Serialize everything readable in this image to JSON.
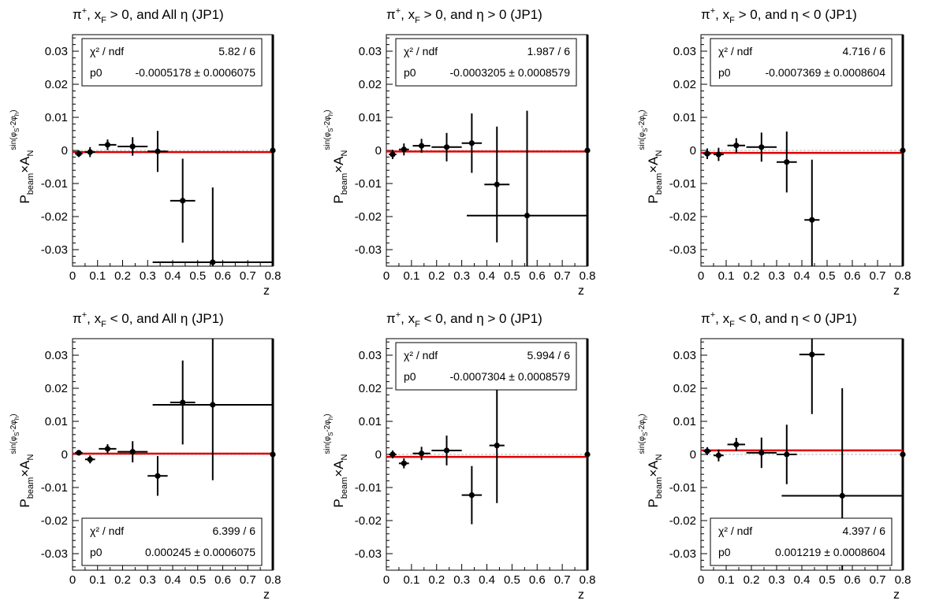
{
  "chart_data": [
    {
      "type": "scatter",
      "title": "π⁺, x_F > 0, and All η (JP1)",
      "title_parts": {
        "particle": "π",
        "charge": "+",
        "x": "x",
        "x_sub": "F",
        "rest": " > 0, and All η (JP1)"
      },
      "ylabel": {
        "p": "P",
        "p_sub": "beam",
        "cross": "×A",
        "a_sub": "N",
        "sup": "sin(φ",
        "sup_s": "S",
        "sup_mid": "-2φ",
        "sup_h": "h",
        "sup_end": ")"
      },
      "xlabel": "z",
      "xlim": [
        0,
        0.8
      ],
      "ylim": [
        -0.035,
        0.035
      ],
      "xticks": [
        "0",
        "0.1",
        "0.2",
        "0.3",
        "0.4",
        "0.5",
        "0.6",
        "0.7",
        "0.8"
      ],
      "yticks": [
        "-0.03",
        "-0.02",
        "-0.01",
        "0",
        "0.01",
        "0.02",
        "0.03"
      ],
      "points": [
        {
          "x": 0.025,
          "y": -0.001,
          "xerr": 0.015,
          "yerr": 0.001
        },
        {
          "x": 0.07,
          "y": -0.0005,
          "xerr": 0.02,
          "yerr": 0.0015
        },
        {
          "x": 0.14,
          "y": 0.0017,
          "xerr": 0.035,
          "yerr": 0.0016
        },
        {
          "x": 0.24,
          "y": 0.0012,
          "xerr": 0.06,
          "yerr": 0.0028
        },
        {
          "x": 0.34,
          "y": -0.0003,
          "xerr": 0.04,
          "yerr": 0.0062
        },
        {
          "x": 0.44,
          "y": -0.0152,
          "xerr": 0.05,
          "yerr": 0.0127
        },
        {
          "x": 0.56,
          "y": -0.0338,
          "xerr": 0.24,
          "yerr": 0.0226
        }
      ],
      "fit_p0": -0.0005178,
      "stats": {
        "chi_label": "χ² / ndf",
        "chi_value": "5.82 / 6",
        "p0_label": "p0",
        "p0_value": "-0.0005178 ± 0.0006075",
        "position": "top"
      }
    },
    {
      "type": "scatter",
      "title": "π⁺, x_F > 0, and η > 0 (JP1)",
      "title_parts": {
        "particle": "π",
        "charge": "+",
        "x": "x",
        "x_sub": "F",
        "rest": " > 0, and η > 0 (JP1)"
      },
      "ylabel": {
        "p": "P",
        "p_sub": "beam",
        "cross": "×A",
        "a_sub": "N",
        "sup": "sin(φ",
        "sup_s": "S",
        "sup_mid": "-2φ",
        "sup_h": "h",
        "sup_end": ")"
      },
      "xlabel": "z",
      "xlim": [
        0,
        0.8
      ],
      "ylim": [
        -0.035,
        0.035
      ],
      "xticks": [
        "0",
        "0.1",
        "0.2",
        "0.3",
        "0.4",
        "0.5",
        "0.6",
        "0.7",
        "0.8"
      ],
      "yticks": [
        "-0.03",
        "-0.02",
        "-0.01",
        "0",
        "0.01",
        "0.02",
        "0.03"
      ],
      "points": [
        {
          "x": 0.025,
          "y": -0.0012,
          "xerr": 0.015,
          "yerr": 0.0014
        },
        {
          "x": 0.07,
          "y": 0.0003,
          "xerr": 0.02,
          "yerr": 0.0018
        },
        {
          "x": 0.14,
          "y": 0.0014,
          "xerr": 0.035,
          "yerr": 0.0021
        },
        {
          "x": 0.24,
          "y": 0.001,
          "xerr": 0.06,
          "yerr": 0.0043
        },
        {
          "x": 0.34,
          "y": 0.0022,
          "xerr": 0.04,
          "yerr": 0.009
        },
        {
          "x": 0.44,
          "y": -0.0103,
          "xerr": 0.05,
          "yerr": 0.0175
        },
        {
          "x": 0.56,
          "y": -0.0197,
          "xerr": 0.24,
          "yerr": 0.0317
        }
      ],
      "fit_p0": -0.0003205,
      "stats": {
        "chi_label": "χ² / ndf",
        "chi_value": "1.987 / 6",
        "p0_label": "p0",
        "p0_value": "-0.0003205 ± 0.0008579",
        "position": "top"
      }
    },
    {
      "type": "scatter",
      "title": "π⁺, x_F > 0, and η < 0 (JP1)",
      "title_parts": {
        "particle": "π",
        "charge": "+",
        "x": "x",
        "x_sub": "F",
        "rest": " > 0, and η < 0 (JP1)"
      },
      "ylabel": {
        "p": "P",
        "p_sub": "beam",
        "cross": "×A",
        "a_sub": "N",
        "sup": "sin(φ",
        "sup_s": "S",
        "sup_mid": "-2φ",
        "sup_h": "h",
        "sup_end": ")"
      },
      "xlabel": "z",
      "xlim": [
        0,
        0.8
      ],
      "ylim": [
        -0.035,
        0.035
      ],
      "xticks": [
        "0",
        "0.1",
        "0.2",
        "0.3",
        "0.4",
        "0.5",
        "0.6",
        "0.7",
        "0.8"
      ],
      "yticks": [
        "-0.03",
        "-0.02",
        "-0.01",
        "0",
        "0.01",
        "0.02",
        "0.03"
      ],
      "points": [
        {
          "x": 0.025,
          "y": -0.001,
          "xerr": 0.015,
          "yerr": 0.0016
        },
        {
          "x": 0.07,
          "y": -0.0012,
          "xerr": 0.02,
          "yerr": 0.002
        },
        {
          "x": 0.14,
          "y": 0.0015,
          "xerr": 0.035,
          "yerr": 0.0022
        },
        {
          "x": 0.24,
          "y": 0.001,
          "xerr": 0.06,
          "yerr": 0.0044
        },
        {
          "x": 0.34,
          "y": -0.0035,
          "xerr": 0.04,
          "yerr": 0.0092
        },
        {
          "x": 0.44,
          "y": -0.021,
          "xerr": 0.03,
          "yerr": 0.0182
        }
      ],
      "fit_p0": -0.0007369,
      "stats": {
        "chi_label": "χ² / ndf",
        "chi_value": "4.716 / 6",
        "p0_label": "p0",
        "p0_value": "-0.0007369 ± 0.0008604",
        "position": "top"
      }
    },
    {
      "type": "scatter",
      "title": "π⁺, x_F < 0, and All η (JP1)",
      "title_parts": {
        "particle": "π",
        "charge": "+",
        "x": "x",
        "x_sub": "F",
        "rest": " < 0, and All η (JP1)"
      },
      "ylabel": {
        "p": "P",
        "p_sub": "beam",
        "cross": "×A",
        "a_sub": "N",
        "sup": "sin(φ",
        "sup_s": "S",
        "sup_mid": "-2φ",
        "sup_h": "h",
        "sup_end": ")"
      },
      "xlabel": "z",
      "xlim": [
        0,
        0.8
      ],
      "ylim": [
        -0.035,
        0.035
      ],
      "xticks": [
        "0",
        "0.1",
        "0.2",
        "0.3",
        "0.4",
        "0.5",
        "0.6",
        "0.7",
        "0.8"
      ],
      "yticks": [
        "-0.03",
        "-0.02",
        "-0.01",
        "0",
        "0.01",
        "0.02",
        "0.03"
      ],
      "points": [
        {
          "x": 0.025,
          "y": 0.0005,
          "xerr": 0.015,
          "yerr": 0.0008
        },
        {
          "x": 0.07,
          "y": -0.0015,
          "xerr": 0.02,
          "yerr": 0.0012
        },
        {
          "x": 0.14,
          "y": 0.0017,
          "xerr": 0.035,
          "yerr": 0.0014
        },
        {
          "x": 0.24,
          "y": 0.0008,
          "xerr": 0.06,
          "yerr": 0.0032
        },
        {
          "x": 0.34,
          "y": -0.0065,
          "xerr": 0.04,
          "yerr": 0.006
        },
        {
          "x": 0.44,
          "y": 0.0157,
          "xerr": 0.05,
          "yerr": 0.0127
        },
        {
          "x": 0.56,
          "y": 0.015,
          "xerr": 0.24,
          "yerr": 0.0228
        }
      ],
      "fit_p0": 0.000245,
      "stats": {
        "chi_label": "χ² / ndf",
        "chi_value": "6.399 / 6",
        "p0_label": "p0",
        "p0_value": "0.000245 ± 0.0006075",
        "position": "bottom"
      }
    },
    {
      "type": "scatter",
      "title": "π⁺, x_F < 0, and η > 0 (JP1)",
      "title_parts": {
        "particle": "π",
        "charge": "+",
        "x": "x",
        "x_sub": "F",
        "rest": " < 0, and η > 0 (JP1)"
      },
      "ylabel": {
        "p": "P",
        "p_sub": "beam",
        "cross": "×A",
        "a_sub": "N",
        "sup": "sin(φ",
        "sup_s": "S",
        "sup_mid": "-2φ",
        "sup_h": "h",
        "sup_end": ")"
      },
      "xlabel": "z",
      "xlim": [
        0,
        0.8
      ],
      "ylim": [
        -0.035,
        0.035
      ],
      "xticks": [
        "0",
        "0.1",
        "0.2",
        "0.3",
        "0.4",
        "0.5",
        "0.6",
        "0.7",
        "0.8"
      ],
      "yticks": [
        "-0.03",
        "-0.02",
        "-0.01",
        "0",
        "0.01",
        "0.02",
        "0.03"
      ],
      "points": [
        {
          "x": 0.025,
          "y": 0.0,
          "xerr": 0.015,
          "yerr": 0.0012
        },
        {
          "x": 0.07,
          "y": -0.0027,
          "xerr": 0.02,
          "yerr": 0.0015
        },
        {
          "x": 0.14,
          "y": 0.0003,
          "xerr": 0.035,
          "yerr": 0.002
        },
        {
          "x": 0.24,
          "y": 0.0012,
          "xerr": 0.06,
          "yerr": 0.0045
        },
        {
          "x": 0.34,
          "y": -0.0123,
          "xerr": 0.04,
          "yerr": 0.0088
        },
        {
          "x": 0.44,
          "y": 0.0027,
          "xerr": 0.03,
          "yerr": 0.0174
        }
      ],
      "fit_p0": -0.0007304,
      "stats": {
        "chi_label": "χ² / ndf",
        "chi_value": "5.994 / 6",
        "p0_label": "p0",
        "p0_value": "-0.0007304 ± 0.0008579",
        "position": "top"
      }
    },
    {
      "type": "scatter",
      "title": "π⁺, x_F < 0, and η < 0 (JP1)",
      "title_parts": {
        "particle": "π",
        "charge": "+",
        "x": "x",
        "x_sub": "F",
        "rest": " < 0, and η < 0 (JP1)"
      },
      "ylabel": {
        "p": "P",
        "p_sub": "beam",
        "cross": "×A",
        "a_sub": "N",
        "sup": "sin(φ",
        "sup_s": "S",
        "sup_mid": "-2φ",
        "sup_h": "h",
        "sup_end": ")"
      },
      "xlabel": "z",
      "xlim": [
        0,
        0.8
      ],
      "ylim": [
        -0.035,
        0.035
      ],
      "xticks": [
        "0",
        "0.1",
        "0.2",
        "0.3",
        "0.4",
        "0.5",
        "0.6",
        "0.7",
        "0.8"
      ],
      "yticks": [
        "-0.03",
        "-0.02",
        "-0.01",
        "0",
        "0.01",
        "0.02",
        "0.03"
      ],
      "points": [
        {
          "x": 0.025,
          "y": 0.001,
          "xerr": 0.015,
          "yerr": 0.0012
        },
        {
          "x": 0.07,
          "y": -0.0003,
          "xerr": 0.02,
          "yerr": 0.0018
        },
        {
          "x": 0.14,
          "y": 0.003,
          "xerr": 0.035,
          "yerr": 0.002
        },
        {
          "x": 0.24,
          "y": 0.0005,
          "xerr": 0.06,
          "yerr": 0.0046
        },
        {
          "x": 0.34,
          "y": 0.0,
          "xerr": 0.04,
          "yerr": 0.009
        },
        {
          "x": 0.44,
          "y": 0.0302,
          "xerr": 0.05,
          "yerr": 0.018
        },
        {
          "x": 0.56,
          "y": -0.0125,
          "xerr": 0.24,
          "yerr": 0.0325
        }
      ],
      "fit_p0": 0.001219,
      "stats": {
        "chi_label": "χ² / ndf",
        "chi_value": "4.397 / 6",
        "p0_label": "p0",
        "p0_value": "0.001219 ± 0.0008604",
        "position": "bottom"
      }
    }
  ],
  "colors": {
    "fit_line": "#e00000",
    "zero_line": "#b8b8b8",
    "marker": "#000000",
    "frame": "#000000"
  }
}
